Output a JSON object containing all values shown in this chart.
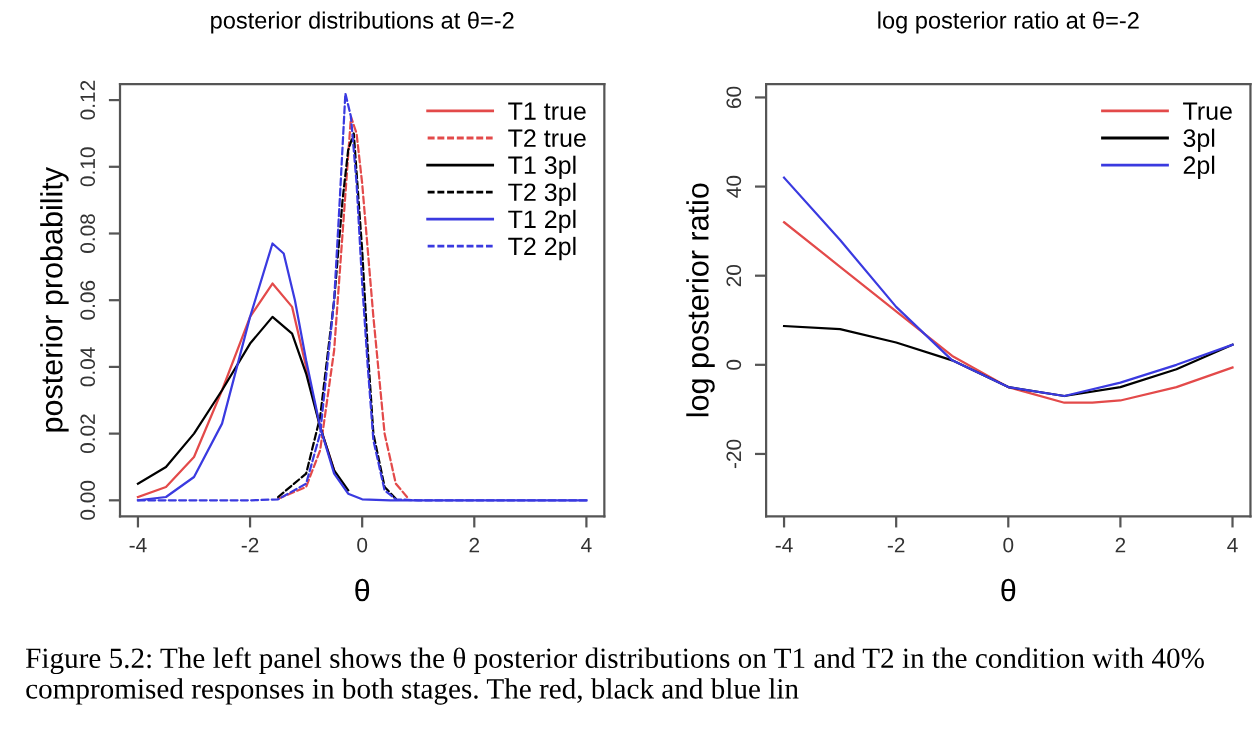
{
  "chart_data": [
    {
      "type": "line",
      "title": "posterior distributions at θ=-2",
      "xlabel": "θ",
      "ylabel": "posterior probability",
      "xlim": [
        -4.32,
        4.32
      ],
      "ylim": [
        -0.0048,
        0.1248
      ],
      "xticks": [
        -4,
        -2,
        0,
        2,
        4
      ],
      "yticks": [
        {
          "value": 0,
          "label": "0.00"
        },
        0.02,
        0.04,
        0.06,
        0.08,
        {
          "value": 0.1,
          "label": "0.10"
        },
        0.12
      ],
      "legend": "top right",
      "grid": false,
      "series": [
        {
          "name": "T1 true",
          "color": "#e34a4a",
          "line_style": "solid",
          "x": [
            -4,
            -3.5,
            -3,
            -2.5,
            -2,
            -1.6,
            -1.25,
            -1,
            -0.75,
            -0.5
          ],
          "values": [
            0.001,
            0.004,
            0.013,
            0.033,
            0.055,
            0.065,
            0.058,
            0.04,
            0.022,
            0.009
          ]
        },
        {
          "name": "T2 true",
          "color": "#e34a4a",
          "line_style": "dashed",
          "x": [
            -1.5,
            -1,
            -0.75,
            -0.5,
            -0.35,
            -0.2,
            -0.1,
            0,
            0.2,
            0.4,
            0.6,
            0.8
          ],
          "values": [
            0.0005,
            0.004,
            0.015,
            0.045,
            0.08,
            0.115,
            0.11,
            0.095,
            0.055,
            0.02,
            0.005,
            0.001
          ]
        },
        {
          "name": "T1 3pl",
          "color": "#000000",
          "line_style": "solid",
          "x": [
            -4,
            -3.5,
            -3,
            -2.5,
            -2,
            -1.6,
            -1.25,
            -1,
            -0.75,
            -0.5,
            -0.25
          ],
          "values": [
            0.005,
            0.01,
            0.02,
            0.033,
            0.047,
            0.055,
            0.05,
            0.038,
            0.022,
            0.009,
            0.003
          ]
        },
        {
          "name": "T2 3pl",
          "color": "#000000",
          "line_style": "dashed",
          "x": [
            -1.5,
            -1,
            -0.75,
            -0.5,
            -0.35,
            -0.25,
            -0.15,
            0,
            0.1,
            0.2,
            0.4,
            0.6
          ],
          "values": [
            0.001,
            0.008,
            0.025,
            0.06,
            0.09,
            0.105,
            0.11,
            0.075,
            0.045,
            0.02,
            0.004,
            0.0005
          ]
        },
        {
          "name": "T1 2pl",
          "color": "#3a3ae0",
          "line_style": "solid",
          "x": [
            -4,
            -3.5,
            -3,
            -2.5,
            -2,
            -1.6,
            -1.4,
            -1.2,
            -1,
            -0.75,
            -0.5,
            -0.25,
            0,
            0.5,
            4
          ],
          "values": [
            0,
            0.001,
            0.007,
            0.023,
            0.055,
            0.077,
            0.074,
            0.06,
            0.042,
            0.022,
            0.008,
            0.002,
            0.0003,
            0,
            0
          ]
        },
        {
          "name": "T2 2pl",
          "color": "#3a3ae0",
          "line_style": "dashed",
          "x": [
            -4,
            -2,
            -1.5,
            -1,
            -0.75,
            -0.5,
            -0.4,
            -0.3,
            -0.2,
            -0.1,
            0,
            0.1,
            0.2,
            0.4,
            0.6,
            1,
            4
          ],
          "values": [
            0,
            0,
            0.0003,
            0.005,
            0.02,
            0.06,
            0.09,
            0.122,
            0.115,
            0.095,
            0.065,
            0.04,
            0.018,
            0.003,
            0.0003,
            0,
            0
          ]
        }
      ],
      "annotations": [
        "Figure 5.2: The left panel shows the θ posterior distributions on T1 and T2 in the condition with 40% compromised responses in both stages. The red, black and blue lin"
      ]
    },
    {
      "type": "line",
      "title": "log posterior ratio at θ=-2",
      "xlabel": "θ",
      "ylabel": "log posterior ratio",
      "xlim": [
        -4.32,
        4.32
      ],
      "ylim": [
        -34,
        63
      ],
      "xticks": [
        -4,
        -2,
        0,
        2,
        4
      ],
      "yticks": [
        -20,
        0,
        20,
        40,
        60
      ],
      "legend": "top right",
      "grid": false,
      "series": [
        {
          "name": "True",
          "color": "#e34a4a",
          "line_style": "solid",
          "x": [
            -4,
            -3,
            -2,
            -1,
            0,
            1,
            1.5,
            2,
            3,
            4
          ],
          "values": [
            32,
            22,
            12,
            2,
            -5,
            -8.5,
            -8.5,
            -8,
            -5,
            -0.6
          ]
        },
        {
          "name": "3pl",
          "color": "#000000",
          "line_style": "solid",
          "x": [
            -4,
            -3,
            -2,
            -1,
            0,
            1,
            2,
            3,
            4
          ],
          "values": [
            8.7,
            8,
            5,
            1,
            -5,
            -7,
            -5,
            -1,
            4.5
          ]
        },
        {
          "name": "2pl",
          "color": "#3a3ae0",
          "line_style": "solid",
          "x": [
            -4,
            -3,
            -2,
            -1,
            0,
            1,
            2,
            3,
            4
          ],
          "values": [
            42,
            28,
            13,
            1,
            -5,
            -7,
            -4,
            0,
            4.5
          ]
        }
      ]
    }
  ]
}
